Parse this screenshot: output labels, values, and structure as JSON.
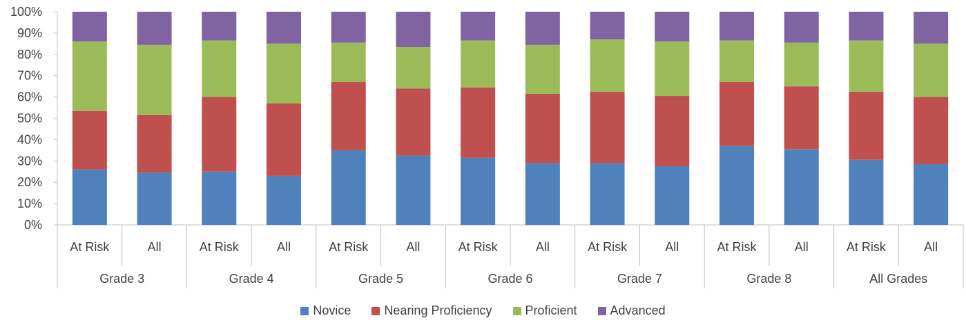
{
  "chart_data": {
    "type": "bar",
    "stacked": true,
    "normalized": true,
    "yticks": [
      "0%",
      "10%",
      "20%",
      "30%",
      "40%",
      "50%",
      "60%",
      "70%",
      "80%",
      "90%",
      "100%"
    ],
    "ylim": [
      0,
      100
    ],
    "groups": [
      "Grade 3",
      "Grade 4",
      "Grade 5",
      "Grade 6",
      "Grade 7",
      "Grade 8",
      "All Grades"
    ],
    "subcategories": [
      "At Risk",
      "All"
    ],
    "categories": [
      "Grade 3 At Risk",
      "Grade 3 All",
      "Grade 4 At Risk",
      "Grade 4 All",
      "Grade 5 At Risk",
      "Grade 5 All",
      "Grade 6 At Risk",
      "Grade 6 All",
      "Grade 7 At Risk",
      "Grade 7 All",
      "Grade 8 At Risk",
      "Grade 8 All",
      "All Grades At Risk",
      "All Grades All"
    ],
    "series": [
      {
        "name": "Novice",
        "color": "#4f81bd",
        "values": [
          26,
          24.5,
          25,
          23,
          35,
          32.5,
          31.5,
          29,
          29,
          27.5,
          37,
          35.5,
          30.5,
          28.5
        ]
      },
      {
        "name": "Nearing Proficiency",
        "color": "#c0504d",
        "values": [
          27.5,
          27,
          35,
          34,
          32,
          31.5,
          33,
          32.5,
          33.5,
          33,
          30,
          29.5,
          32,
          31.5
        ]
      },
      {
        "name": "Proficient",
        "color": "#9bbb59",
        "values": [
          32.5,
          33,
          26.5,
          28,
          18.5,
          19.5,
          22,
          23,
          24.5,
          25.5,
          19.5,
          20.5,
          24,
          25
        ]
      },
      {
        "name": "Advanced",
        "color": "#8064a2",
        "values": [
          14,
          15.5,
          13.5,
          15,
          14.5,
          16.5,
          13.5,
          15.5,
          13,
          14,
          13.5,
          14.5,
          13.5,
          15
        ]
      }
    ],
    "grid": false,
    "legend_position": "bottom"
  }
}
